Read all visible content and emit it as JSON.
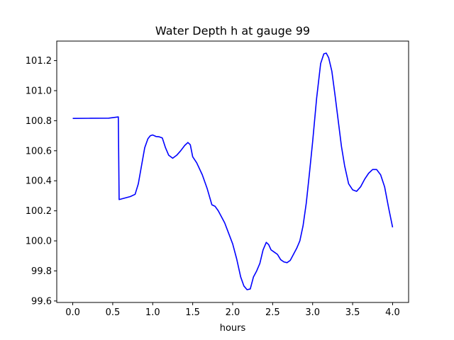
{
  "chart_data": {
    "type": "line",
    "title": "Water Depth h at gauge 99",
    "xlabel": "hours",
    "ylabel": "",
    "xlim": [
      -0.2,
      4.2
    ],
    "ylim": [
      99.59,
      101.33
    ],
    "x_ticks": [
      0.0,
      0.5,
      1.0,
      1.5,
      2.0,
      2.5,
      3.0,
      3.5,
      4.0
    ],
    "x_tick_labels": [
      "0.0",
      "0.5",
      "1.0",
      "1.5",
      "2.0",
      "2.5",
      "3.0",
      "3.5",
      "4.0"
    ],
    "y_ticks": [
      99.6,
      99.8,
      100.0,
      100.2,
      100.4,
      100.6,
      100.8,
      101.0,
      101.2
    ],
    "y_tick_labels": [
      "99.6",
      "99.8",
      "100.0",
      "100.2",
      "100.4",
      "100.6",
      "100.8",
      "101.0",
      "101.2"
    ],
    "grid": false,
    "legend": "none",
    "series": [
      {
        "color": "#0000ff",
        "x": [
          0.0,
          0.2,
          0.45,
          0.57,
          0.58,
          0.65,
          0.72,
          0.78,
          0.82,
          0.86,
          0.9,
          0.94,
          0.97,
          1.0,
          1.04,
          1.08,
          1.12,
          1.16,
          1.2,
          1.25,
          1.3,
          1.35,
          1.4,
          1.44,
          1.47,
          1.5,
          1.55,
          1.62,
          1.68,
          1.74,
          1.78,
          1.82,
          1.86,
          1.9,
          1.95,
          2.0,
          2.05,
          2.1,
          2.14,
          2.18,
          2.22,
          2.26,
          2.3,
          2.34,
          2.38,
          2.42,
          2.45,
          2.48,
          2.52,
          2.56,
          2.6,
          2.64,
          2.68,
          2.72,
          2.76,
          2.8,
          2.84,
          2.88,
          2.92,
          2.96,
          3.0,
          3.05,
          3.1,
          3.14,
          3.17,
          3.2,
          3.24,
          3.28,
          3.32,
          3.36,
          3.4,
          3.45,
          3.5,
          3.55,
          3.6,
          3.65,
          3.7,
          3.75,
          3.8,
          3.85,
          3.9,
          3.95,
          4.0
        ],
        "y": [
          100.815,
          100.816,
          100.817,
          100.825,
          100.275,
          100.285,
          100.295,
          100.31,
          100.38,
          100.5,
          100.62,
          100.68,
          100.7,
          100.705,
          100.695,
          100.693,
          100.685,
          100.62,
          100.57,
          100.55,
          100.57,
          100.6,
          100.635,
          100.655,
          100.64,
          100.56,
          100.52,
          100.44,
          100.35,
          100.24,
          100.23,
          100.2,
          100.16,
          100.12,
          100.05,
          99.98,
          99.88,
          99.76,
          99.7,
          99.675,
          99.68,
          99.76,
          99.8,
          99.85,
          99.94,
          99.99,
          99.975,
          99.94,
          99.925,
          99.91,
          99.875,
          99.86,
          99.855,
          99.87,
          99.91,
          99.95,
          100.0,
          100.1,
          100.25,
          100.45,
          100.66,
          100.95,
          101.18,
          101.245,
          101.25,
          101.22,
          101.13,
          100.97,
          100.8,
          100.63,
          100.5,
          100.38,
          100.34,
          100.33,
          100.36,
          100.41,
          100.45,
          100.475,
          100.475,
          100.44,
          100.36,
          100.22,
          100.09
        ]
      }
    ]
  }
}
